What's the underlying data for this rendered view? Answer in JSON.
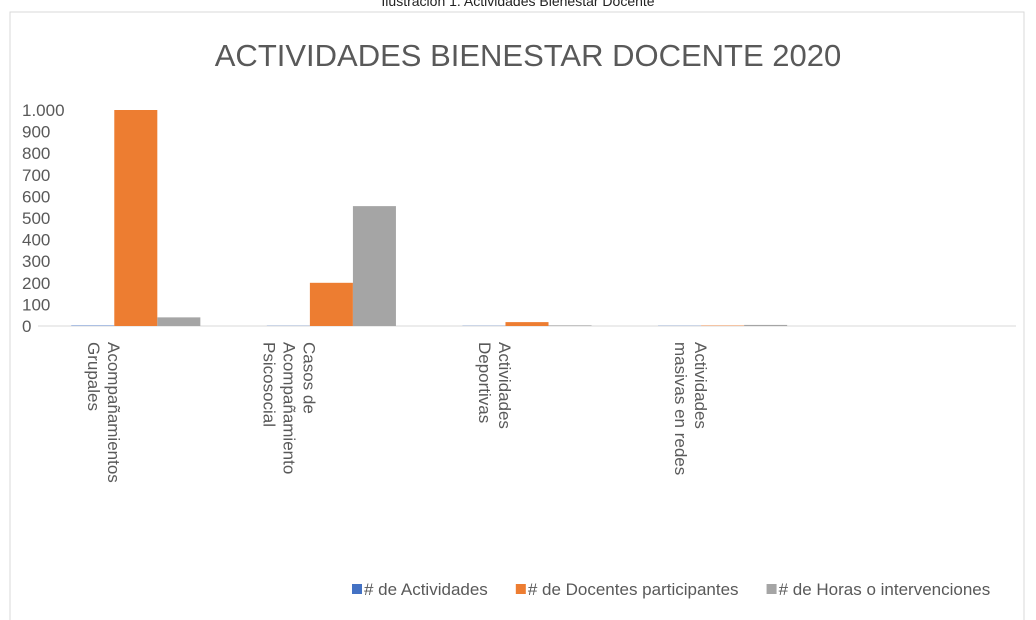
{
  "caption": "Ilustración 1. Actividades Bienestar Docente",
  "chart_data": {
    "type": "bar",
    "title": "ACTIVIDADES BIENESTAR DOCENTE 2020",
    "categories": [
      "Acompañamientos Grupales",
      "Casos de Acompañamiento Psicosocial",
      "Actividades Deportivas",
      "Actividades masivas en redes",
      null
    ],
    "series": [
      {
        "name": "# de Actividades",
        "color": "#4472c4",
        "values": [
          2,
          1,
          1,
          1,
          null
        ]
      },
      {
        "name": "# de Docentes participantes",
        "color": "#ed7d31",
        "values": [
          1000,
          200,
          18,
          2,
          null
        ]
      },
      {
        "name": "# de Horas o intervenciones",
        "color": "#a5a5a5",
        "values": [
          40,
          555,
          3,
          5,
          null
        ]
      }
    ],
    "ylim": [
      0,
      1000
    ],
    "yticks": [
      0,
      100,
      200,
      300,
      400,
      500,
      600,
      700,
      800,
      900,
      {
        "value": 1000,
        "label": "1.000"
      }
    ],
    "grid": false,
    "legend": "bottom"
  }
}
